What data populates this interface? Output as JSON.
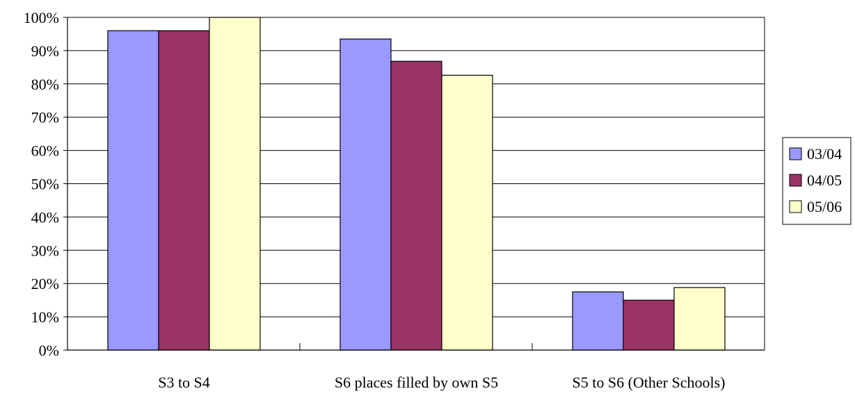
{
  "chart_data": {
    "type": "bar",
    "title": "",
    "xlabel": "",
    "ylabel": "",
    "categories": [
      "S3 to S4",
      "S6 places filled by own S5",
      "S5 to S6 (Other Schools)"
    ],
    "series": [
      {
        "name": "03/04",
        "values": [
          0.96,
          0.935,
          0.175
        ],
        "color": "#9999ff"
      },
      {
        "name": "04/05",
        "values": [
          0.96,
          0.868,
          0.15
        ],
        "color": "#993366"
      },
      {
        "name": "05/06",
        "values": [
          1.0,
          0.826,
          0.188
        ],
        "color": "#ffffcc"
      }
    ],
    "ylim": [
      0,
      1
    ],
    "yticks": [
      0,
      0.1,
      0.2,
      0.3,
      0.4,
      0.5,
      0.6,
      0.7,
      0.8,
      0.9,
      1.0
    ],
    "ytick_labels": [
      "0%",
      "10%",
      "20%",
      "30%",
      "40%",
      "50%",
      "60%",
      "70%",
      "80%",
      "90%",
      "100%"
    ],
    "grid": true,
    "legend_position": "right"
  }
}
